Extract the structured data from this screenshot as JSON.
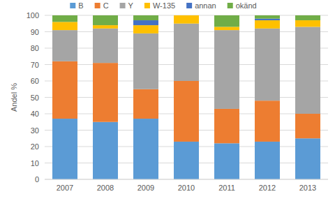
{
  "chart_data": {
    "type": "bar",
    "stacked": true,
    "grid": true,
    "legend": "top",
    "y_label": "Andel %",
    "categories": [
      "2007",
      "2008",
      "2009",
      "2010",
      "2011",
      "2012",
      "2013"
    ],
    "series": [
      {
        "name": "B",
        "color": "#5b9bd5",
        "values": [
          37,
          35,
          37,
          23,
          22,
          23,
          25
        ]
      },
      {
        "name": "C",
        "color": "#ed7d31",
        "values": [
          35,
          36,
          18,
          37,
          21,
          25,
          15
        ]
      },
      {
        "name": "Y",
        "color": "#a5a5a5",
        "values": [
          19,
          21,
          34,
          35,
          48,
          44,
          53
        ]
      },
      {
        "name": "W-135",
        "color": "#ffc000",
        "values": [
          5,
          2,
          5,
          5,
          2,
          5,
          4
        ]
      },
      {
        "name": "annan",
        "color": "#4472c4",
        "values": [
          0,
          0,
          3,
          0,
          0,
          1,
          0
        ]
      },
      {
        "name": "okänd",
        "color": "#70ad47",
        "values": [
          4,
          6,
          3,
          0,
          7,
          2,
          3
        ]
      }
    ],
    "ylim": [
      0,
      100
    ],
    "yticks": [
      0,
      10,
      20,
      30,
      40,
      50,
      60,
      70,
      80,
      90,
      100
    ]
  }
}
